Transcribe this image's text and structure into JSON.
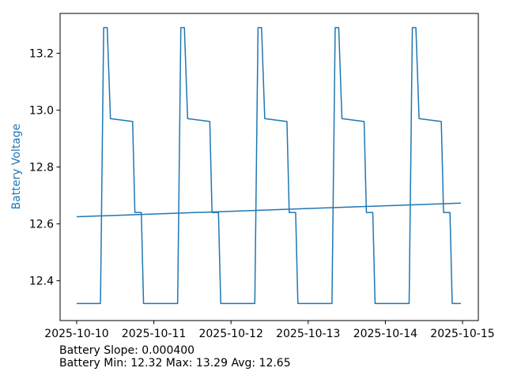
{
  "figure": {
    "background": "#ffffff"
  },
  "chart_data": {
    "type": "line",
    "title": "",
    "xlabel": "",
    "ylabel": "Battery Voltage",
    "ylabel_color": "#1f77b4",
    "line_color": "#1f77b4",
    "axis_color": "#000000",
    "tick_label_color": "#000000",
    "x_unit": "hours since 2025-10-10 00:00",
    "xlim": [
      -5.16,
      124.92
    ],
    "ylim": [
      12.26,
      13.34
    ],
    "grid": false,
    "legend": "none",
    "x_ticks": [
      {
        "t": 0,
        "label": "2025-10-10"
      },
      {
        "t": 24,
        "label": "2025-10-11"
      },
      {
        "t": 48,
        "label": "2025-10-12"
      },
      {
        "t": 72,
        "label": "2025-10-13"
      },
      {
        "t": 96,
        "label": "2025-10-14"
      },
      {
        "t": 120,
        "label": "2025-10-15"
      }
    ],
    "y_ticks": [
      {
        "v": 12.4,
        "label": "12.4"
      },
      {
        "v": 12.6,
        "label": "12.6"
      },
      {
        "v": 12.8,
        "label": "12.8"
      },
      {
        "v": 13.0,
        "label": "13.0"
      },
      {
        "v": 13.2,
        "label": "13.2"
      }
    ],
    "series": [
      {
        "name": "battery-voltage",
        "color": "#1f77b4",
        "width": 1.5,
        "points": [
          [
            0,
            12.32
          ],
          [
            7.4,
            12.32
          ],
          [
            8.4,
            13.29
          ],
          [
            9.5,
            13.29
          ],
          [
            10.5,
            12.97
          ],
          [
            17.4,
            12.96
          ],
          [
            18.1,
            12.64
          ],
          [
            20.1,
            12.64
          ],
          [
            20.8,
            12.32
          ],
          [
            31.4,
            12.32
          ],
          [
            32.4,
            13.29
          ],
          [
            33.5,
            13.29
          ],
          [
            34.5,
            12.97
          ],
          [
            41.4,
            12.96
          ],
          [
            42.1,
            12.64
          ],
          [
            44.1,
            12.64
          ],
          [
            44.8,
            12.32
          ],
          [
            55.4,
            12.32
          ],
          [
            56.4,
            13.29
          ],
          [
            57.5,
            13.29
          ],
          [
            58.5,
            12.97
          ],
          [
            65.4,
            12.96
          ],
          [
            66.1,
            12.64
          ],
          [
            68.1,
            12.64
          ],
          [
            68.8,
            12.32
          ],
          [
            79.4,
            12.32
          ],
          [
            80.4,
            13.29
          ],
          [
            81.5,
            13.29
          ],
          [
            82.5,
            12.97
          ],
          [
            89.4,
            12.96
          ],
          [
            90.1,
            12.64
          ],
          [
            92.1,
            12.64
          ],
          [
            92.8,
            12.32
          ],
          [
            103.4,
            12.32
          ],
          [
            104.4,
            13.29
          ],
          [
            105.5,
            13.29
          ],
          [
            106.5,
            12.97
          ],
          [
            113.4,
            12.96
          ],
          [
            114.1,
            12.64
          ],
          [
            116.1,
            12.64
          ],
          [
            116.8,
            12.32
          ],
          [
            119.5,
            12.32
          ]
        ]
      },
      {
        "name": "battery-trend",
        "color": "#1f77b4",
        "width": 1.5,
        "points": [
          [
            0,
            12.625
          ],
          [
            119.5,
            12.673
          ]
        ]
      }
    ],
    "stats": {
      "slope": "0.000400",
      "min": "12.32",
      "max": "13.29",
      "avg": "12.65"
    }
  },
  "annotations": {
    "line1": "Battery Slope: 0.000400",
    "line2": "Battery Min: 12.32 Max: 13.29 Avg: 12.65"
  }
}
